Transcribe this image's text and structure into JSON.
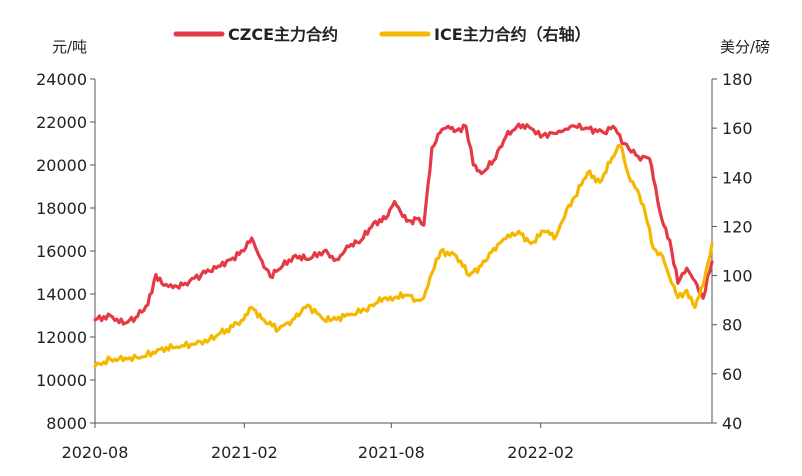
{
  "chart_data": {
    "type": "line",
    "title": "",
    "x_ticks": [
      "2020-08",
      "2021-02",
      "2021-08",
      "2022-02"
    ],
    "y_left": {
      "unit": "元/吨",
      "lim": [
        8000,
        24000
      ],
      "ticks": [
        "8000",
        "10000",
        "12000",
        "14000",
        "16000",
        "18000",
        "20000",
        "22000",
        "24000"
      ]
    },
    "y_right": {
      "unit": "美分/磅",
      "lim": [
        40,
        180
      ],
      "ticks": [
        "40",
        "60",
        "80",
        "100",
        "120",
        "140",
        "160",
        "180"
      ]
    },
    "grid": false,
    "legend_position": "top",
    "series": [
      {
        "name": "CZCE主力合约",
        "axis": "left",
        "color": "#e63946",
        "x": [
          "2020-08-01",
          "2020-08-20",
          "2020-09-05",
          "2020-09-20",
          "2020-10-05",
          "2020-10-15",
          "2020-10-25",
          "2020-11-05",
          "2020-11-20",
          "2020-12-10",
          "2020-12-31",
          "2021-01-15",
          "2021-01-31",
          "2021-02-10",
          "2021-02-20",
          "2021-03-05",
          "2021-03-20",
          "2021-04-05",
          "2021-04-20",
          "2021-05-10",
          "2021-05-25",
          "2021-06-10",
          "2021-06-25",
          "2021-07-10",
          "2021-07-25",
          "2021-08-05",
          "2021-08-15",
          "2021-08-25",
          "2021-09-01",
          "2021-09-10",
          "2021-09-20",
          "2021-09-30",
          "2021-10-10",
          "2021-10-20",
          "2021-11-01",
          "2021-11-10",
          "2021-11-20",
          "2021-12-05",
          "2021-12-20",
          "2022-01-05",
          "2022-01-20",
          "2022-02-01",
          "2022-02-15",
          "2022-03-01",
          "2022-03-15",
          "2022-04-01",
          "2022-04-20",
          "2022-05-01",
          "2022-05-15",
          "2022-06-01",
          "2022-06-15",
          "2022-06-30",
          "2022-07-10",
          "2022-07-20",
          "2022-07-31",
          "2022-08-10",
          "2022-08-20",
          "2022-08-31"
        ],
        "values": [
          12800,
          13000,
          12600,
          12900,
          13500,
          14900,
          14400,
          14300,
          14500,
          14900,
          15300,
          15600,
          16000,
          16600,
          15700,
          14800,
          15300,
          15800,
          15600,
          16000,
          15600,
          16200,
          16500,
          17300,
          17500,
          18300,
          17600,
          17400,
          17500,
          17200,
          20800,
          21500,
          21800,
          21600,
          21800,
          20000,
          19600,
          20200,
          21300,
          21900,
          21700,
          21300,
          21500,
          21600,
          21800,
          21700,
          21500,
          21800,
          21000,
          20400,
          20300,
          17500,
          16500,
          14500,
          15200,
          14600,
          13800,
          15500
        ]
      },
      {
        "name": "ICE主力合约（右轴）",
        "axis": "right",
        "color": "#f5b800",
        "x": [
          "2020-08-01",
          "2020-08-20",
          "2020-09-10",
          "2020-09-30",
          "2020-10-20",
          "2020-11-10",
          "2020-11-30",
          "2020-12-20",
          "2021-01-10",
          "2021-01-31",
          "2021-02-10",
          "2021-02-25",
          "2021-03-15",
          "2021-04-01",
          "2021-04-20",
          "2021-05-10",
          "2021-05-20",
          "2021-06-10",
          "2021-06-30",
          "2021-07-15",
          "2021-07-25",
          "2021-08-05",
          "2021-08-20",
          "2021-09-01",
          "2021-09-10",
          "2021-09-20",
          "2021-10-01",
          "2021-10-20",
          "2021-11-05",
          "2021-11-20",
          "2021-12-05",
          "2021-12-20",
          "2022-01-05",
          "2022-01-20",
          "2022-02-05",
          "2022-02-20",
          "2022-03-05",
          "2022-03-15",
          "2022-03-31",
          "2022-04-15",
          "2022-04-30",
          "2022-05-10",
          "2022-05-20",
          "2022-05-31",
          "2022-06-10",
          "2022-06-20",
          "2022-07-01",
          "2022-07-10",
          "2022-07-20",
          "2022-07-31",
          "2022-08-10",
          "2022-08-20",
          "2022-08-31"
        ],
        "values": [
          63,
          66,
          66,
          67,
          70,
          71,
          72,
          74,
          78,
          82,
          87,
          82,
          78,
          82,
          88,
          82,
          82,
          84,
          86,
          89,
          91,
          91,
          92,
          90,
          91,
          101,
          110,
          108,
          100,
          104,
          111,
          115,
          118,
          113,
          118,
          116,
          127,
          132,
          142,
          138,
          148,
          153,
          141,
          135,
          125,
          111,
          108,
          99,
          91,
          94,
          87,
          96,
          113
        ]
      }
    ]
  }
}
